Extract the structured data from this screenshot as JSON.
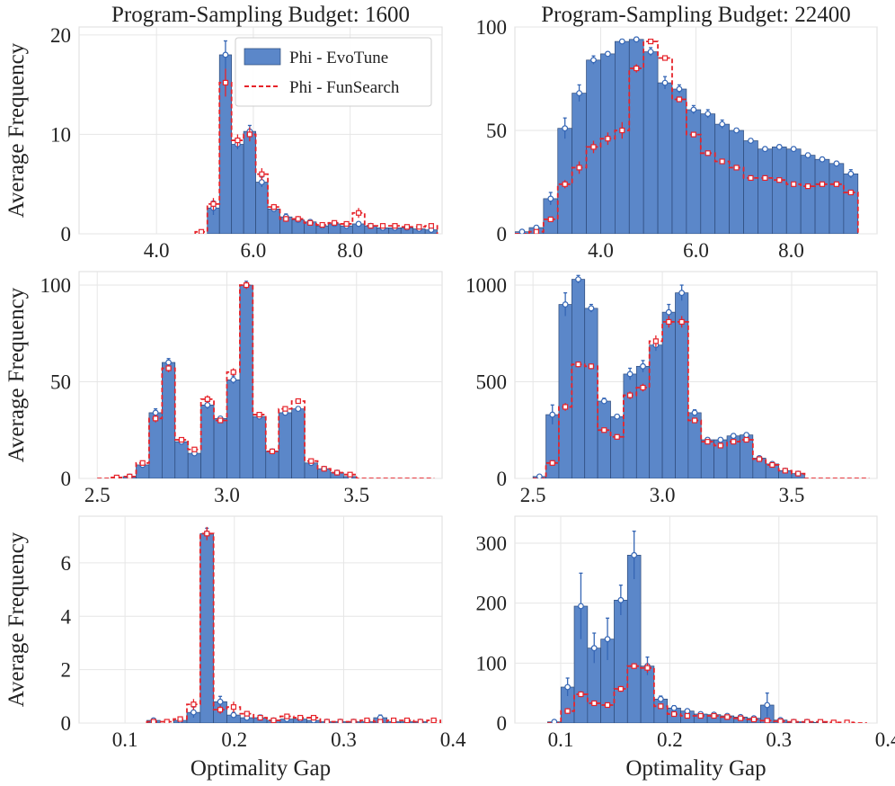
{
  "colors": {
    "evotune": "#5b87c9",
    "evotune_edge": "#2d4a7a",
    "funsearch": "#e6232a",
    "grid": "#e6e6e6"
  },
  "chart_data": [
    {
      "id": "p00",
      "type": "bar",
      "title": "Program-Sampling Budget: 1600",
      "xlabel": "",
      "ylabel": "Average Frequency",
      "xlim": [
        2.4,
        9.9
      ],
      "ylim": [
        0,
        20.8
      ],
      "xticks": [
        {
          "v": 4.0,
          "label": "4.0"
        },
        {
          "v": 6.0,
          "label": "6.0"
        },
        {
          "v": 8.0,
          "label": "8.0"
        }
      ],
      "yticks": [
        {
          "v": 0,
          "label": "0"
        },
        {
          "v": 10,
          "label": "10"
        },
        {
          "v": 20,
          "label": "20"
        }
      ],
      "legend": {
        "position": "top-right",
        "evotune": "Phi - EvoTune",
        "funsearch": "Phi - FunSearch"
      },
      "x0": 4.8,
      "width": 0.25,
      "evotune": [
        0,
        2.6,
        18.0,
        9.0,
        10.3,
        5.2,
        2.5,
        1.7,
        1.4,
        1.2,
        0.8,
        1.0,
        0.8,
        1.0,
        0.8,
        0.6,
        0.6,
        0.6,
        0.5,
        0.4
      ],
      "evotune_err": [
        0,
        0.7,
        1.4,
        0.5,
        0.6,
        0.5,
        0.3,
        0.3,
        0.2,
        0.2,
        0.1,
        0.2,
        0.1,
        0.2,
        0.1,
        0.1,
        0.1,
        0.1,
        0.1,
        0.1
      ],
      "funsearch": [
        0.2,
        3.0,
        15.2,
        9.4,
        10.0,
        6.0,
        2.7,
        1.5,
        1.5,
        1.1,
        0.9,
        1.1,
        1.0,
        2.1,
        0.8,
        0.8,
        0.8,
        0.7,
        0.7,
        0.8
      ],
      "funsearch_err": [
        0.1,
        0.6,
        1.4,
        0.6,
        0.7,
        0.6,
        0.3,
        0.3,
        0.3,
        0.2,
        0.2,
        0.2,
        0.2,
        0.5,
        0.2,
        0.2,
        0.1,
        0.1,
        0.1,
        0.1
      ]
    },
    {
      "id": "p01",
      "type": "bar",
      "title": "Program-Sampling Budget: 22400",
      "xlabel": "",
      "ylabel": "",
      "xlim": [
        2.2,
        9.8
      ],
      "ylim": [
        0,
        100
      ],
      "xticks": [
        {
          "v": 4.0,
          "label": "4.0"
        },
        {
          "v": 6.0,
          "label": "6.0"
        },
        {
          "v": 8.0,
          "label": "8.0"
        }
      ],
      "yticks": [
        {
          "v": 0,
          "label": "0"
        },
        {
          "v": 50,
          "label": "50"
        },
        {
          "v": 100,
          "label": "100"
        }
      ],
      "x0": 2.2,
      "width": 0.3,
      "evotune": [
        1,
        3,
        17,
        51,
        68,
        84,
        87,
        93,
        94,
        88,
        73,
        70,
        60,
        58,
        53,
        50,
        45,
        41,
        42,
        41,
        38,
        36,
        34,
        29
      ],
      "evotune_err": [
        0.5,
        1,
        3,
        5,
        4,
        2,
        1,
        1,
        1,
        2,
        3,
        2,
        2,
        2,
        2,
        1,
        1,
        1,
        1,
        1,
        1,
        1,
        1,
        2
      ],
      "funsearch": [
        0,
        1,
        7,
        24,
        32,
        42,
        46,
        50,
        80,
        93,
        85,
        65,
        48,
        39,
        35,
        32,
        27,
        27,
        26,
        24,
        23,
        24,
        24,
        20
      ],
      "funsearch_err": [
        0,
        0.5,
        1,
        2,
        3,
        3,
        3,
        4,
        2,
        1,
        1,
        1,
        1,
        1,
        1,
        1,
        1,
        1,
        1,
        1,
        1,
        1,
        1,
        1
      ]
    },
    {
      "id": "p10",
      "type": "bar",
      "title": "",
      "xlabel": "",
      "ylabel": "Average Frequency",
      "xlim": [
        2.43,
        3.83
      ],
      "ylim": [
        0,
        107
      ],
      "xticks": [
        {
          "v": 2.5,
          "label": "2.5"
        },
        {
          "v": 3.0,
          "label": "3.0"
        },
        {
          "v": 3.5,
          "label": "3.5"
        }
      ],
      "yticks": [
        {
          "v": 0,
          "label": "0"
        },
        {
          "v": 50,
          "label": "50"
        },
        {
          "v": 100,
          "label": "100"
        }
      ],
      "x0": 2.5,
      "width": 0.05,
      "evotune": [
        0,
        0,
        1,
        7,
        34,
        60,
        19,
        13,
        38,
        31,
        51,
        100,
        32,
        14,
        34,
        36,
        8,
        5,
        3,
        1,
        0,
        0,
        0,
        0,
        0,
        0
      ],
      "evotune_err": [
        0,
        0,
        0.3,
        1,
        2,
        2,
        1,
        1,
        2,
        1,
        2,
        2,
        1,
        1,
        1,
        1,
        1,
        0.5,
        0.3,
        0.2,
        0,
        0,
        0,
        0,
        0,
        0
      ],
      "funsearch": [
        0,
        0.5,
        1,
        8,
        31,
        57,
        20,
        15,
        41,
        30,
        55,
        100,
        33,
        14,
        36,
        40,
        9,
        5,
        3,
        2,
        0,
        0,
        0,
        0,
        0,
        0
      ],
      "funsearch_err": [
        0,
        0.2,
        0.3,
        1,
        2,
        2,
        1,
        1,
        2,
        1,
        2,
        2,
        1,
        1,
        1,
        1,
        1,
        0.5,
        0.3,
        0.2,
        0,
        0,
        0,
        0,
        0,
        0
      ]
    },
    {
      "id": "p11",
      "type": "bar",
      "title": "",
      "xlabel": "",
      "ylabel": "",
      "xlim": [
        2.43,
        3.83
      ],
      "ylim": [
        0,
        1070
      ],
      "xticks": [
        {
          "v": 2.5,
          "label": "2.5"
        },
        {
          "v": 3.0,
          "label": "3.0"
        },
        {
          "v": 3.5,
          "label": "3.5"
        }
      ],
      "yticks": [
        {
          "v": 0,
          "label": "0"
        },
        {
          "v": 500,
          "label": "500"
        },
        {
          "v": 1000,
          "label": "1000"
        }
      ],
      "x0": 2.5,
      "width": 0.05,
      "evotune": [
        10,
        330,
        900,
        1030,
        880,
        400,
        320,
        540,
        580,
        690,
        860,
        960,
        340,
        200,
        200,
        220,
        225,
        105,
        75,
        40,
        25,
        0,
        0,
        0,
        0,
        0
      ],
      "evotune_err": [
        5,
        50,
        60,
        20,
        20,
        15,
        10,
        30,
        30,
        30,
        40,
        40,
        15,
        10,
        10,
        10,
        10,
        10,
        5,
        5,
        5,
        0,
        0,
        0,
        0,
        0
      ],
      "funsearch": [
        0,
        80,
        370,
        590,
        580,
        250,
        215,
        430,
        470,
        710,
        810,
        810,
        300,
        190,
        170,
        190,
        200,
        100,
        70,
        40,
        25,
        0,
        0,
        0,
        0,
        0
      ],
      "funsearch_err": [
        0,
        10,
        20,
        15,
        15,
        10,
        10,
        20,
        20,
        30,
        30,
        30,
        10,
        10,
        10,
        10,
        10,
        10,
        5,
        5,
        5,
        0,
        0,
        0,
        0,
        0
      ]
    },
    {
      "id": "p20",
      "type": "bar",
      "title": "",
      "xlabel": "Optimality Gap",
      "ylabel": "Average Frequency",
      "xlim": [
        0.058,
        0.39
      ],
      "ylim": [
        0,
        7.75
      ],
      "xticks": [
        {
          "v": 0.1,
          "label": "0.1"
        },
        {
          "v": 0.2,
          "label": "0.2"
        },
        {
          "v": 0.3,
          "label": "0.3"
        },
        {
          "v": 0.4,
          "label": "0.4"
        }
      ],
      "yticks": [
        {
          "v": 0,
          "label": "0"
        },
        {
          "v": 2,
          "label": "2"
        },
        {
          "v": 4,
          "label": "4"
        },
        {
          "v": 6,
          "label": "6"
        }
      ],
      "x0": 0.12,
      "width": 0.0122,
      "evotune": [
        0.1,
        0,
        0.1,
        0.4,
        7.1,
        0.8,
        0.3,
        0.2,
        0.2,
        0.1,
        0.15,
        0.15,
        0.1,
        0.05,
        0.05,
        0.05,
        0.05,
        0.2,
        0.05,
        0.05,
        0.05,
        0
      ],
      "evotune_err": [
        0.05,
        0,
        0.05,
        0.2,
        0.2,
        0.2,
        0.1,
        0.1,
        0.1,
        0.05,
        0.05,
        0.05,
        0.05,
        0,
        0,
        0,
        0,
        0.1,
        0,
        0,
        0,
        0
      ],
      "funsearch": [
        0.05,
        0.05,
        0.15,
        0.7,
        7.1,
        0.5,
        0.6,
        0.35,
        0.2,
        0.1,
        0.25,
        0.2,
        0.2,
        0.05,
        0.05,
        0.05,
        0.1,
        0.05,
        0.1,
        0.1,
        0.05,
        0.1
      ],
      "funsearch_err": [
        0.02,
        0.02,
        0.05,
        0.2,
        0.25,
        0.15,
        0.2,
        0.1,
        0.1,
        0.05,
        0.1,
        0.1,
        0.1,
        0.02,
        0.02,
        0.02,
        0.05,
        0.02,
        0.05,
        0.05,
        0.02,
        0.05
      ]
    },
    {
      "id": "p21",
      "type": "bar",
      "title": "",
      "xlabel": "Optimality Gap",
      "ylabel": "",
      "xlim": [
        0.058,
        0.39
      ],
      "ylim": [
        0,
        345
      ],
      "xticks": [
        {
          "v": 0.1,
          "label": "0.1"
        },
        {
          "v": 0.2,
          "label": "0.2"
        },
        {
          "v": 0.3,
          "label": "0.3"
        },
        {
          "v": 0.4,
          "label": "0.4"
        }
      ],
      "yticks": [
        {
          "v": 0,
          "label": "0"
        },
        {
          "v": 100,
          "label": "100"
        },
        {
          "v": 200,
          "label": "200"
        },
        {
          "v": 300,
          "label": "300"
        }
      ],
      "x0": 0.088,
      "width": 0.0122,
      "evotune": [
        2,
        60,
        195,
        125,
        140,
        205,
        280,
        95,
        40,
        25,
        20,
        15,
        14,
        12,
        10,
        8,
        30,
        5,
        2,
        2,
        1,
        0,
        0,
        0
      ],
      "evotune_err": [
        2,
        15,
        55,
        25,
        35,
        25,
        40,
        15,
        5,
        4,
        3,
        3,
        2,
        2,
        2,
        2,
        20,
        2,
        1,
        1,
        0,
        0,
        0,
        0
      ],
      "funsearch": [
        0,
        20,
        48,
        33,
        30,
        57,
        95,
        92,
        28,
        15,
        12,
        12,
        12,
        10,
        8,
        6,
        4,
        3,
        2,
        2,
        2,
        1,
        1,
        0
      ],
      "funsearch_err": [
        0,
        5,
        5,
        4,
        4,
        5,
        5,
        8,
        4,
        3,
        2,
        2,
        2,
        2,
        2,
        1,
        1,
        1,
        1,
        1,
        1,
        1,
        0,
        0
      ]
    }
  ]
}
